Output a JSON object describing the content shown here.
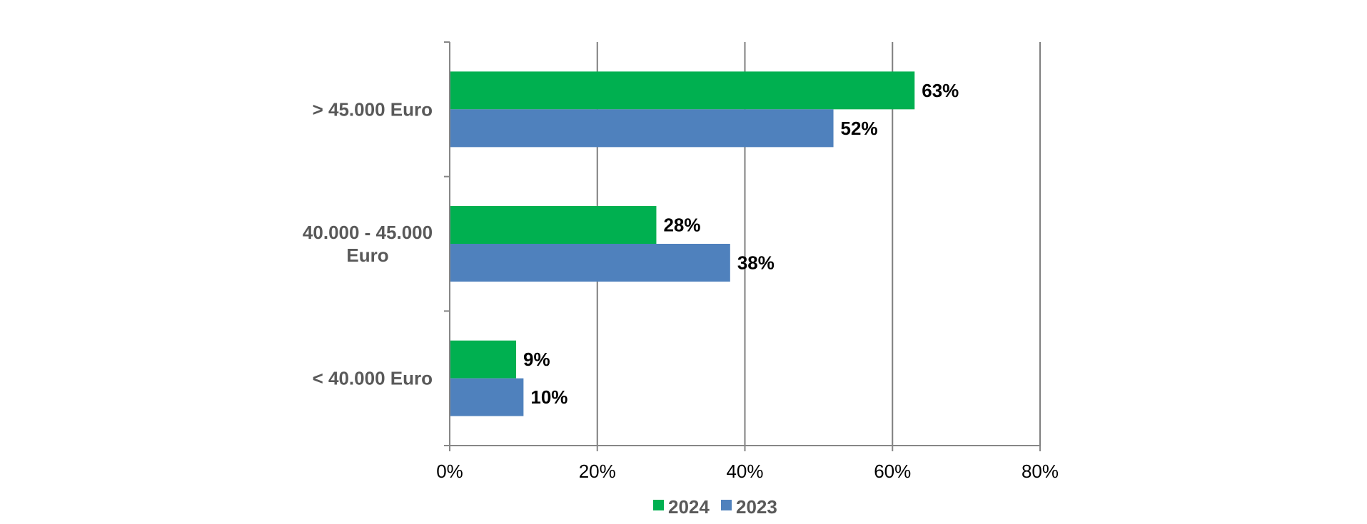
{
  "chart_data": {
    "type": "bar",
    "orientation": "horizontal",
    "categories": [
      "> 45.000 Euro",
      "40.000 - 45.000 Euro",
      "< 40.000 Euro"
    ],
    "series": [
      {
        "name": "2024",
        "color": "#00B050",
        "values": [
          63,
          28,
          9
        ]
      },
      {
        "name": "2023",
        "color": "#4F81BD",
        "values": [
          52,
          38,
          10
        ]
      }
    ],
    "data_labels": [
      [
        "63%",
        "28%",
        "9%"
      ],
      [
        "52%",
        "38%",
        "10%"
      ]
    ],
    "xlim": [
      0,
      80
    ],
    "x_ticks": [
      0,
      20,
      40,
      60,
      80
    ],
    "x_tick_labels": [
      "0%",
      "20%",
      "40%",
      "60%",
      "80%"
    ],
    "grid": "vertical",
    "gridline_color": "#7F7F7F",
    "legend_position": "bottom",
    "title": "",
    "xlabel": "",
    "ylabel": ""
  }
}
